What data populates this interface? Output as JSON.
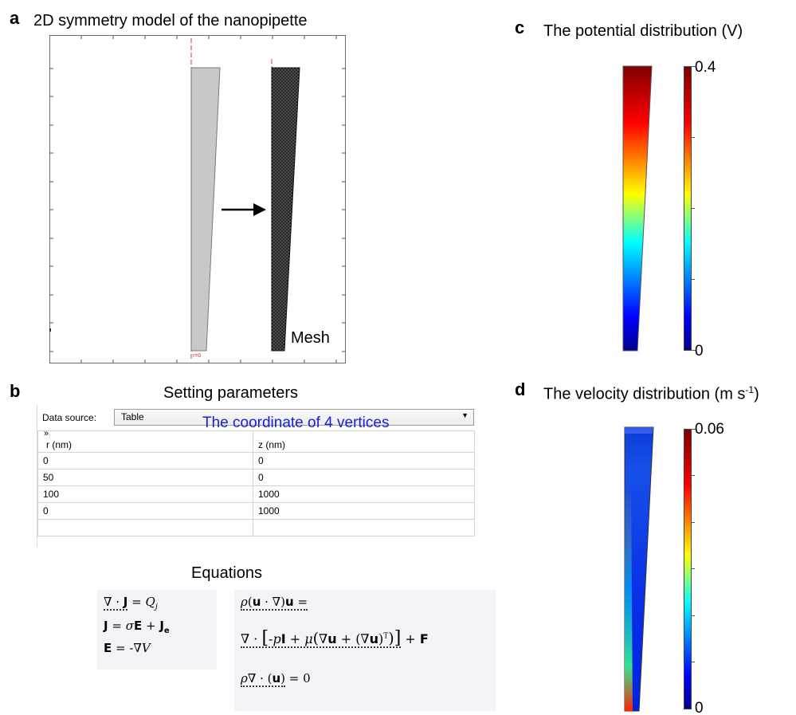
{
  "panel_a": {
    "label": "a",
    "title": "2D symmetry model of the nanopipette",
    "mesh_label": "Mesh",
    "axis_marker": "r=0"
  },
  "panel_b": {
    "label": "b",
    "title": "Setting parameters",
    "data_source_label": "Data source:",
    "data_source_value": "Table",
    "overlay_note": "The coordinate of 4 vertices",
    "columns": [
      "r (nm)",
      "z (nm)"
    ],
    "rows": [
      [
        "0",
        "0"
      ],
      [
        "50",
        "0"
      ],
      [
        "100",
        "1000"
      ],
      [
        "0",
        "1000"
      ],
      [
        "",
        ""
      ]
    ],
    "equations_title": "Equations"
  },
  "panel_c": {
    "label": "c",
    "title": "The potential distribution (V)",
    "colorbar_max": "0.4",
    "colorbar_min": "0"
  },
  "panel_d": {
    "label": "d",
    "title_main": "The velocity distribution (m s",
    "title_sup": "-1",
    "title_end": ")",
    "colorbar_max": "0.06",
    "colorbar_min": "0"
  },
  "colors": {
    "axis_red": "#e03030",
    "geometry_fill": "#c8c8c8",
    "overlay_blue": "#1a22d6",
    "jet": [
      "#00008f",
      "#0000ff",
      "#00ffff",
      "#ffff00",
      "#ff0000",
      "#800000"
    ]
  }
}
